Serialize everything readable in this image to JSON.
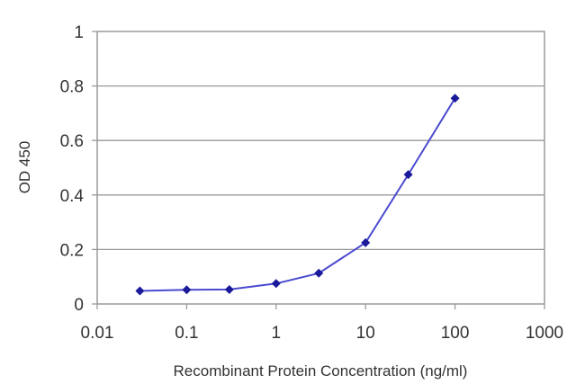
{
  "chart_data": {
    "type": "scatter",
    "title": "",
    "xlabel": "Recombinant Protein Concentration (ng/ml)",
    "ylabel": "OD 450",
    "xscale": "log",
    "xlim": [
      0.01,
      1000
    ],
    "ylim": [
      0,
      1
    ],
    "x_ticks": [
      "0.01",
      "0.1",
      "1",
      "10",
      "100",
      "1000"
    ],
    "y_ticks": [
      "0",
      "0.2",
      "0.4",
      "0.6",
      "0.8",
      "1"
    ],
    "grid": "horizontal",
    "legend": "none",
    "line_color": "#4a4ad0",
    "marker_color": "#1a1a9a",
    "series": [
      {
        "x": [
          0.03,
          0.1,
          0.3,
          1,
          3,
          10,
          30,
          100
        ],
        "y": [
          0.048,
          0.052,
          0.053,
          0.075,
          0.113,
          0.225,
          0.475,
          0.755
        ]
      }
    ]
  }
}
